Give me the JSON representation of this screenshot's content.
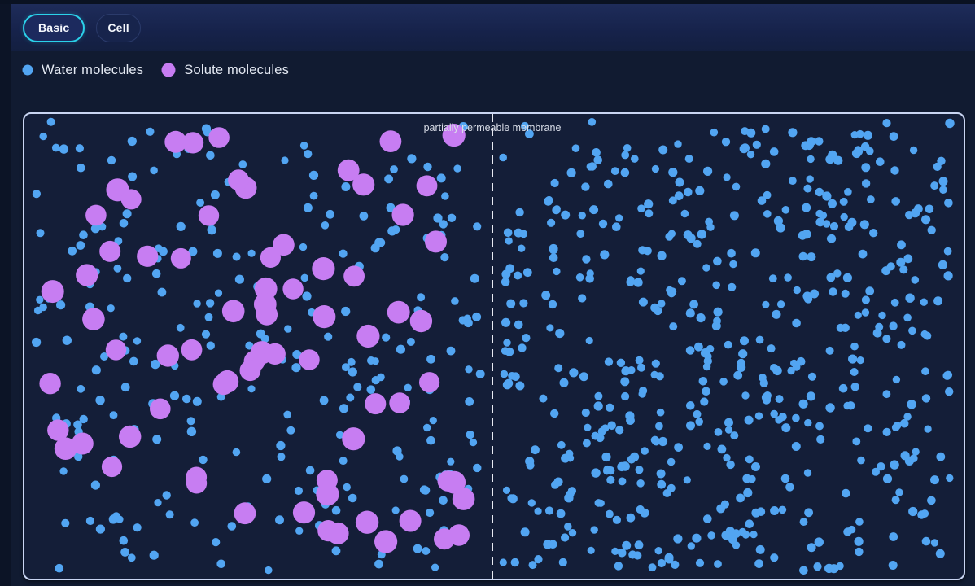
{
  "tabs": [
    {
      "label": "Basic",
      "active": true
    },
    {
      "label": "Cell",
      "active": false
    }
  ],
  "legend": [
    {
      "label": "Water molecules",
      "color": "#52a5f2"
    },
    {
      "label": "Solute molecules",
      "color": "#c77df2"
    }
  ],
  "membrane": {
    "label": "partially permeable membrane",
    "x_ratio": 0.498,
    "dash": [
      10,
      7
    ],
    "line_color": "#e8eaf2",
    "label_color": "#d9dde8",
    "label_font_size": 12.5
  },
  "simulation": {
    "seed": 91442,
    "background": "#141e38",
    "border_color": "#c9d5f2",
    "species": [
      {
        "name": "water",
        "color": "#52a5f2",
        "radius_min": 4.6,
        "radius_max": 5.7,
        "edge_gap": 8,
        "membrane_gap": 8,
        "regions": [
          {
            "side": "left",
            "count": 255
          },
          {
            "side": "right",
            "count": 520
          }
        ]
      },
      {
        "name": "solute",
        "color": "#c77df2",
        "radius_min": 12.4,
        "radius_max": 14.2,
        "edge_gap": 16,
        "membrane_gap": 18,
        "regions": [
          {
            "side": "left",
            "count": 72
          },
          {
            "side": "right",
            "count": 0
          }
        ]
      }
    ]
  },
  "colors": {
    "page_background": "#111b31",
    "topbar_background": "#16224a",
    "active_tab_accent": "#2bd2ea",
    "canvas_background": "#141e38",
    "canvas_border": "#c9d5f2",
    "water_color": "#52a5f2",
    "solute_color": "#c77df2"
  }
}
